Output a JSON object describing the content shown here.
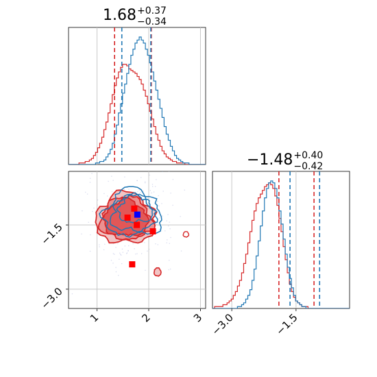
{
  "chart_data": {
    "type": "corner",
    "parameters": [
      {
        "title": {
          "median": "1.68",
          "plus": "+0.37",
          "minus": "−0.34"
        },
        "range": [
          0.45,
          3.1
        ],
        "ticks": [
          1,
          2,
          3
        ],
        "tick_labels": [
          "1",
          "2",
          "3"
        ]
      },
      {
        "title": {
          "median": "−1.48",
          "plus": "+0.40",
          "minus": "−0.42"
        },
        "range": [
          -3.45,
          -0.25
        ],
        "ticks": [
          -3.0,
          -1.5
        ],
        "tick_labels": [
          "−3.0",
          "−1.5"
        ]
      }
    ],
    "series": [
      {
        "color": "#d62728",
        "quantile_lines_p1": [
          1.34,
          2.05
        ],
        "quantile_lines_p2": [
          -1.9,
          -1.08
        ]
      },
      {
        "color": "#1f77b4",
        "quantile_lines_p1": [
          1.48,
          2.04
        ],
        "quantile_lines_p2": [
          -1.64,
          -0.95
        ]
      }
    ],
    "reference_lines": {
      "p1": [
        1,
        2,
        3
      ],
      "p2": [
        -3.0,
        -1.5
      ]
    },
    "hist_p1": {
      "bin_edges": [
        0.45,
        3.1
      ],
      "blue": [
        0,
        0,
        0,
        0,
        0,
        0,
        0,
        0,
        0,
        0,
        0,
        0,
        0,
        1,
        1,
        2,
        2,
        3,
        5,
        7,
        10,
        14,
        20,
        26,
        34,
        40,
        47,
        53,
        60,
        66,
        72,
        76,
        80,
        82,
        84,
        82,
        80,
        76,
        72,
        67,
        61,
        55,
        49,
        43,
        37,
        31,
        25,
        20,
        16,
        12,
        9,
        6,
        4,
        3,
        2,
        1,
        1,
        1,
        0,
        0,
        0,
        0,
        0,
        0,
        0,
        0
      ],
      "red": [
        0,
        0,
        0,
        0,
        0,
        1,
        1,
        1,
        2,
        2,
        3,
        4,
        6,
        8,
        11,
        14,
        18,
        23,
        28,
        34,
        40,
        46,
        52,
        57,
        61,
        64,
        66,
        66,
        65,
        63,
        62,
        61,
        60,
        58,
        56,
        53,
        49,
        45,
        40,
        35,
        30,
        25,
        20,
        16,
        12,
        9,
        7,
        5,
        4,
        3,
        2,
        2,
        1,
        1,
        1,
        1,
        0,
        0,
        0,
        0,
        0,
        0,
        0,
        0,
        0,
        0
      ]
    },
    "hist_p2": {
      "bin_edges": [
        -3.45,
        -0.25
      ],
      "blue": [
        0,
        0,
        0,
        0,
        0,
        0,
        0,
        0,
        0,
        0,
        0,
        0,
        1,
        1,
        2,
        3,
        5,
        7,
        10,
        15,
        21,
        28,
        36,
        44,
        52,
        59,
        64,
        67,
        68,
        67,
        64,
        59,
        52,
        45,
        37,
        29,
        22,
        16,
        11,
        7,
        4,
        3,
        2,
        1,
        1,
        0,
        0,
        0,
        0,
        0,
        0,
        0,
        0,
        0,
        0,
        0,
        0,
        0,
        0,
        0,
        0,
        0,
        0,
        0,
        0,
        0
      ],
      "red": [
        0,
        1,
        1,
        1,
        1,
        2,
        2,
        3,
        4,
        5,
        7,
        9,
        12,
        15,
        19,
        24,
        29,
        35,
        41,
        47,
        52,
        56,
        59,
        61,
        63,
        65,
        66,
        67,
        66,
        64,
        60,
        55,
        48,
        41,
        33,
        26,
        19,
        13,
        9,
        6,
        4,
        3,
        2,
        1,
        1,
        1,
        0,
        0,
        0,
        0,
        0,
        0,
        0,
        0,
        0,
        0,
        0,
        0,
        0,
        0,
        0,
        0,
        0,
        0,
        0,
        0
      ]
    },
    "scatter_2d": {
      "red_markers": [
        [
          1.72,
          -1.12
        ],
        [
          1.59,
          -1.33
        ],
        [
          1.77,
          -1.5
        ],
        [
          2.08,
          -1.65
        ],
        [
          1.68,
          -2.42
        ]
      ],
      "blue_markers": [
        [
          1.78,
          -1.26
        ]
      ],
      "levels_red": [
        {
          "center": [
            1.56,
            -1.36
          ],
          "rx": 0.58,
          "ry": 0.58
        },
        {
          "center": [
            1.56,
            -1.36
          ],
          "rx": 0.5,
          "ry": 0.5
        },
        {
          "center": [
            1.56,
            -1.36
          ],
          "rx": 0.42,
          "ry": 0.42
        }
      ],
      "levels_blue": [
        {
          "center": [
            1.7,
            -1.24
          ],
          "rx": 0.55,
          "ry": 0.55
        },
        {
          "center": [
            1.7,
            -1.24
          ],
          "rx": 0.42,
          "ry": 0.42
        },
        {
          "center": [
            1.74,
            -1.14
          ],
          "rx": 0.32,
          "ry": 0.32
        }
      ]
    }
  }
}
